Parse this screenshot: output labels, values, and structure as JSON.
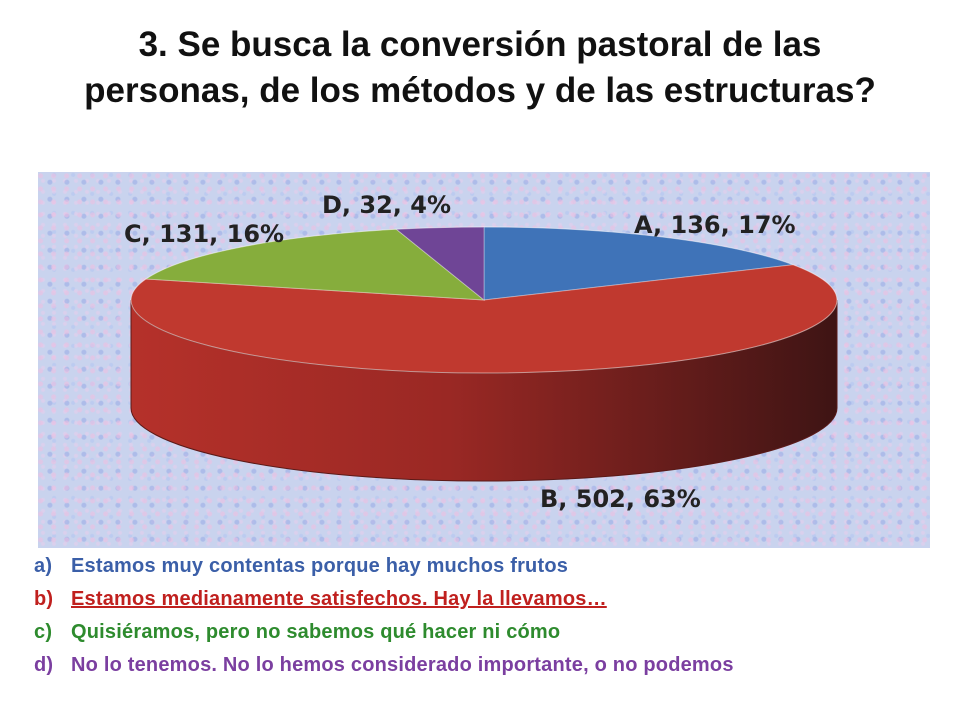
{
  "title": "3. Se busca la conversión pastoral de las personas, de los métodos y de las estructuras?",
  "chart_data": {
    "type": "pie",
    "three_d": true,
    "categories": [
      "A",
      "B",
      "C",
      "D"
    ],
    "values": [
      136,
      502,
      131,
      32
    ],
    "percentages": [
      17,
      63,
      16,
      4
    ],
    "data_labels": [
      "A, 136, 17%",
      "B, 502, 63%",
      "C, 131, 16%",
      "D, 32, 4%"
    ],
    "colors": [
      "#3f73b8",
      "#c0392f",
      "#86ad3c",
      "#6f4596"
    ]
  },
  "legend": {
    "items": [
      {
        "letter": "a)",
        "text": "Estamos muy contentas porque hay muchos frutos",
        "color": "#3b5fa8"
      },
      {
        "letter": "b)",
        "text": "Estamos medianamente satisfechos. Hay la llevamos…",
        "color": "#c0201e"
      },
      {
        "letter": "c)",
        "text": "Quisiéramos, pero no sabemos qué hacer ni cómo",
        "color": "#2e8b2e"
      },
      {
        "letter": "d)",
        "text": "No lo tenemos. No lo hemos considerado importante, o no podemos",
        "color": "#7b3fa0"
      }
    ]
  }
}
